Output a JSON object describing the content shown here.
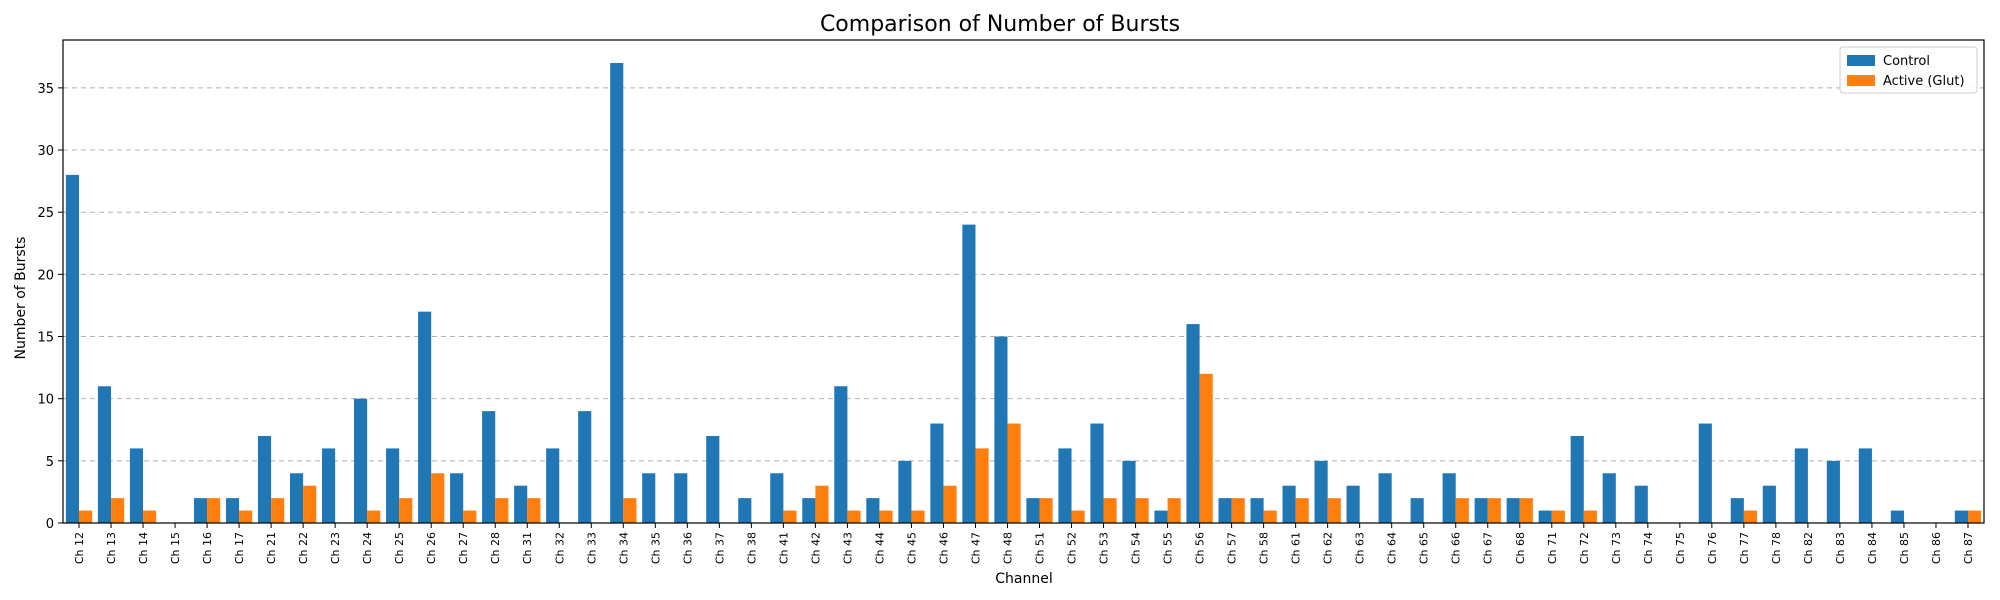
{
  "chart_data": {
    "type": "bar",
    "title": "Comparison of Number of Bursts",
    "xlabel": "Channel",
    "ylabel": "Number of Bursts",
    "ylim": [
      0,
      38.85
    ],
    "yticks": [
      0,
      5,
      10,
      15,
      20,
      25,
      30,
      35
    ],
    "grid": "y",
    "legend": "top-right",
    "categories": [
      "Ch 12",
      "Ch 13",
      "Ch 14",
      "Ch 15",
      "Ch 16",
      "Ch 17",
      "Ch 21",
      "Ch 22",
      "Ch 23",
      "Ch 24",
      "Ch 25",
      "Ch 26",
      "Ch 27",
      "Ch 28",
      "Ch 31",
      "Ch 32",
      "Ch 33",
      "Ch 34",
      "Ch 35",
      "Ch 36",
      "Ch 37",
      "Ch 38",
      "Ch 41",
      "Ch 42",
      "Ch 43",
      "Ch 44",
      "Ch 45",
      "Ch 46",
      "Ch 47",
      "Ch 48",
      "Ch 51",
      "Ch 52",
      "Ch 53",
      "Ch 54",
      "Ch 55",
      "Ch 56",
      "Ch 57",
      "Ch 58",
      "Ch 61",
      "Ch 62",
      "Ch 63",
      "Ch 64",
      "Ch 65",
      "Ch 66",
      "Ch 67",
      "Ch 68",
      "Ch 71",
      "Ch 72",
      "Ch 73",
      "Ch 74",
      "Ch 75",
      "Ch 76",
      "Ch 77",
      "Ch 78",
      "Ch 82",
      "Ch 83",
      "Ch 84",
      "Ch 85",
      "Ch 86",
      "Ch 87"
    ],
    "series": [
      {
        "name": "Control",
        "color": "#1f77b4",
        "values": [
          28,
          11,
          6,
          0,
          2,
          2,
          7,
          4,
          6,
          10,
          6,
          17,
          4,
          9,
          3,
          6,
          9,
          37,
          4,
          4,
          7,
          2,
          4,
          2,
          11,
          2,
          5,
          8,
          24,
          15,
          2,
          6,
          8,
          5,
          1,
          16,
          2,
          2,
          3,
          5,
          3,
          4,
          2,
          4,
          2,
          2,
          1,
          7,
          4,
          3,
          0,
          8,
          2,
          3,
          6,
          5,
          6,
          1,
          0,
          1
        ]
      },
      {
        "name": "Active (Glut)",
        "color": "#ff7f0e",
        "values": [
          1,
          2,
          1,
          0,
          2,
          1,
          2,
          3,
          0,
          1,
          2,
          4,
          1,
          2,
          2,
          0,
          0,
          2,
          0,
          0,
          0,
          0,
          1,
          3,
          1,
          1,
          1,
          3,
          6,
          8,
          2,
          1,
          2,
          2,
          2,
          12,
          2,
          1,
          2,
          2,
          0,
          0,
          0,
          2,
          2,
          2,
          1,
          1,
          0,
          0,
          0,
          0,
          1,
          0,
          0,
          0,
          0,
          0,
          0,
          1
        ]
      }
    ]
  }
}
